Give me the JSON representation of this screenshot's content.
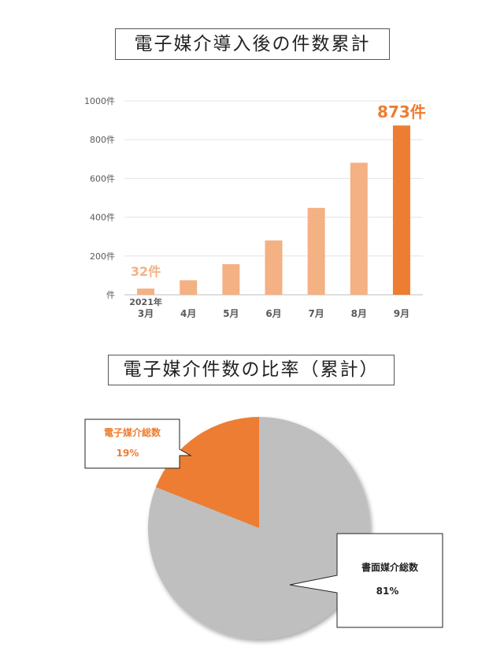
{
  "bar_title": "電子媒介導入後の件数累計",
  "pie_title": "電子媒介件数の比率（累計）",
  "chart_data": [
    {
      "type": "bar",
      "title": "電子媒介導入後の件数累計",
      "categories": [
        "3月",
        "4月",
        "5月",
        "6月",
        "7月",
        "8月",
        "9月"
      ],
      "year_label": "2021年",
      "values": [
        32,
        75,
        158,
        280,
        448,
        681,
        873
      ],
      "ylim": [
        0,
        1000
      ],
      "yticks": [
        "件",
        "200件",
        "400件",
        "600件",
        "800件",
        "1000件"
      ],
      "data_labels": [
        {
          "index": 0,
          "text": "32件"
        },
        {
          "index": 6,
          "text": "873件"
        }
      ],
      "grid": true,
      "colors": {
        "bar": "#f4b183",
        "highlight": "#ed7d31",
        "label": "#f4b183",
        "highlight_label": "#ed7d31"
      }
    },
    {
      "type": "pie",
      "title": "電子媒介件数の比率（累計）",
      "slices": [
        {
          "label": "電子媒介総数",
          "value": 19,
          "text": "19%",
          "color": "#ed7d31"
        },
        {
          "label": "書面媒介総数",
          "value": 81,
          "text": "81%",
          "color": "#bfbfbf"
        }
      ]
    }
  ]
}
